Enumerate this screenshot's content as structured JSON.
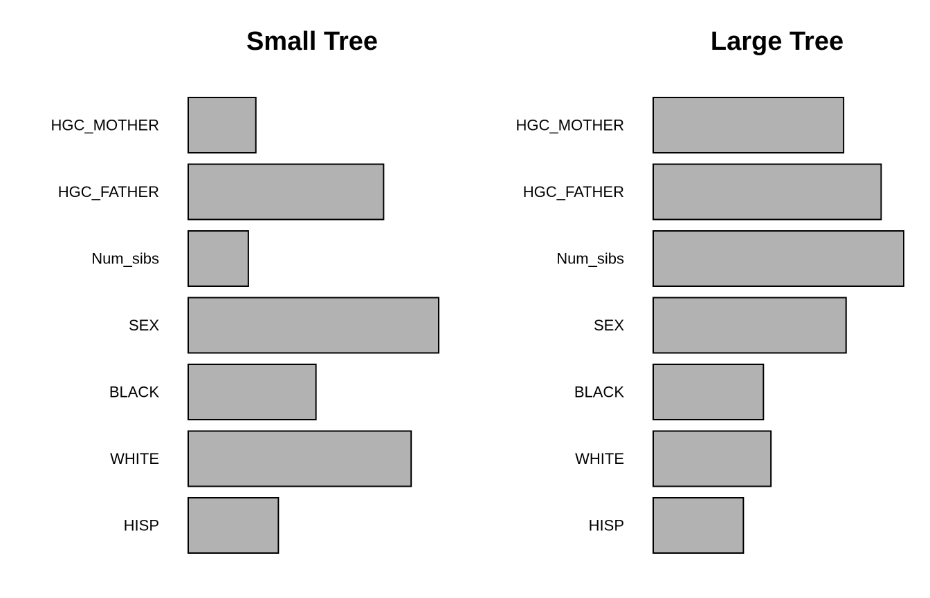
{
  "chart_data": [
    {
      "type": "bar",
      "orientation": "horizontal",
      "title": "Small Tree",
      "xlabel": "",
      "ylabel": "",
      "axes_shown": false,
      "grid": false,
      "categories": [
        "HGC_MOTHER",
        "HGC_FATHER",
        "Num_sibs",
        "SEX",
        "BLACK",
        "WHITE",
        "HISP"
      ],
      "values": [
        0.27,
        0.78,
        0.24,
        1.0,
        0.51,
        0.89,
        0.36
      ],
      "xlim": [
        0,
        1
      ],
      "bar_color": "#b2b2b2",
      "edge_color": "#000000"
    },
    {
      "type": "bar",
      "orientation": "horizontal",
      "title": "Large Tree",
      "xlabel": "",
      "ylabel": "",
      "axes_shown": false,
      "grid": false,
      "categories": [
        "HGC_MOTHER",
        "HGC_FATHER",
        "Num_sibs",
        "SEX",
        "BLACK",
        "WHITE",
        "HISP"
      ],
      "values": [
        0.76,
        0.91,
        1.0,
        0.77,
        0.44,
        0.47,
        0.36
      ],
      "xlim": [
        0,
        1
      ],
      "bar_color": "#b2b2b2",
      "edge_color": "#000000"
    }
  ]
}
